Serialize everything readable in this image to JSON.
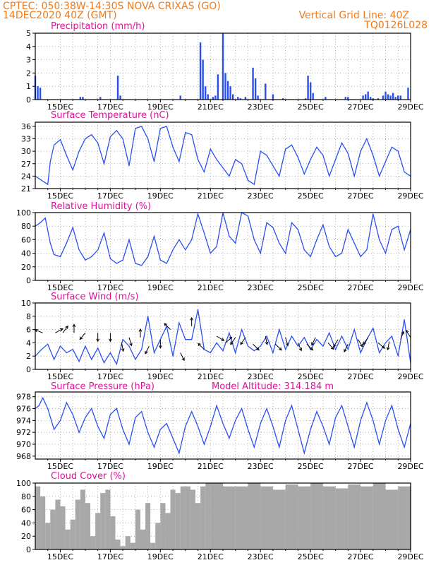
{
  "header": {
    "line1": "CPTEC:   050:38W-14:30S   NOVA CRIXAS (GO)",
    "line2": "14DEC2020 40Z (GMT)",
    "right1": "Vertical Grid Line: 40Z",
    "right2": "TQ0126L028"
  },
  "x_ticks": [
    "15DEC",
    "17DEC",
    "19DEC",
    "21DEC",
    "23DEC",
    "25DEC",
    "27DEC",
    "29DEC"
  ],
  "colors": {
    "series": "#2a4ff0",
    "header": "#f07a1a",
    "title": "#e0119a",
    "cloud": "#a8a8a8",
    "grid": "#9a9a9a"
  },
  "model_altitude": "Model Altitude: 314.184 m",
  "chart_data": [
    {
      "type": "bar",
      "title": "Precipitation (mm/h)",
      "ylim": [
        0,
        5
      ],
      "yticks": [
        "0",
        "1",
        "2",
        "3",
        "4",
        "5"
      ],
      "x": [
        14.0,
        14.1,
        14.2,
        15.8,
        15.9,
        16.6,
        17.3,
        17.4,
        19.8,
        20.6,
        20.7,
        20.8,
        20.9,
        21.1,
        21.2,
        21.3,
        21.5,
        21.6,
        21.7,
        21.8,
        21.9,
        22.1,
        22.2,
        22.4,
        22.7,
        22.8,
        22.9,
        23.2,
        23.5,
        23.9,
        24.8,
        24.9,
        25.0,
        25.1,
        25.6,
        26.4,
        26.5,
        27.1,
        27.2,
        27.3,
        27.4,
        27.5,
        27.7,
        27.9,
        28.0,
        28.1,
        28.2,
        28.3,
        28.4,
        28.5,
        28.6,
        28.9
      ],
      "values": [
        1.8,
        1.0,
        0.9,
        0.2,
        0.2,
        0.2,
        1.8,
        0.3,
        0.3,
        4.3,
        3.0,
        1.0,
        0.4,
        0.2,
        0.3,
        1.9,
        5.0,
        2.0,
        1.4,
        1.0,
        0.4,
        0.2,
        0.1,
        0.2,
        2.4,
        1.6,
        0.3,
        1.2,
        0.4,
        0.1,
        0.1,
        1.8,
        1.3,
        0.5,
        0.2,
        0.2,
        0.2,
        0.3,
        0.4,
        0.6,
        0.2,
        0.1,
        0.1,
        0.3,
        0.6,
        0.4,
        0.3,
        0.5,
        0.2,
        0.3,
        0.3,
        0.9
      ]
    },
    {
      "type": "line",
      "title": "Surface Temperature (nC)",
      "ylim": [
        21,
        37
      ],
      "yticks": [
        "21",
        "24",
        "27",
        "30",
        "33",
        "36"
      ],
      "x": [
        14.0,
        14.25,
        14.5,
        14.6,
        14.75,
        15.0,
        15.25,
        15.5,
        15.75,
        16.0,
        16.25,
        16.5,
        16.75,
        17.0,
        17.25,
        17.5,
        17.75,
        18.0,
        18.25,
        18.5,
        18.75,
        19.0,
        19.25,
        19.5,
        19.75,
        20.0,
        20.25,
        20.5,
        20.75,
        21.0,
        21.25,
        21.5,
        21.75,
        22.0,
        22.25,
        22.5,
        22.75,
        23.0,
        23.25,
        23.5,
        23.75,
        24.0,
        24.25,
        24.5,
        24.75,
        25.0,
        25.25,
        25.5,
        25.75,
        26.0,
        26.25,
        26.5,
        26.75,
        27.0,
        27.25,
        27.5,
        27.75,
        28.0,
        28.25,
        28.5,
        28.75,
        29.0
      ],
      "values": [
        24.0,
        23.0,
        22.0,
        27.5,
        31.5,
        32.8,
        29.0,
        25.5,
        30.0,
        33.0,
        34.0,
        32.0,
        27.0,
        33.5,
        35.0,
        33.0,
        26.5,
        35.5,
        36.0,
        33.0,
        27.5,
        35.5,
        36.0,
        31.0,
        27.5,
        34.5,
        34.0,
        28.0,
        25.0,
        30.5,
        28.0,
        26.0,
        24.0,
        28.0,
        27.0,
        23.0,
        22.0,
        30.0,
        29.0,
        26.5,
        24.0,
        30.5,
        31.5,
        28.5,
        24.5,
        28.0,
        31.0,
        29.0,
        24.0,
        28.0,
        32.0,
        29.5,
        24.0,
        30.0,
        33.0,
        29.0,
        24.0,
        27.5,
        31.0,
        30.0,
        25.0,
        24.0
      ]
    },
    {
      "type": "line",
      "title": "Relative Humidity (%)",
      "ylim": [
        0,
        100
      ],
      "yticks": [
        "0",
        "20",
        "40",
        "60",
        "80",
        "100"
      ],
      "x": [
        14.0,
        14.2,
        14.4,
        14.6,
        14.75,
        15.0,
        15.25,
        15.5,
        15.75,
        16.0,
        16.25,
        16.5,
        16.75,
        17.0,
        17.25,
        17.5,
        17.75,
        18.0,
        18.25,
        18.5,
        18.75,
        19.0,
        19.25,
        19.5,
        19.75,
        20.0,
        20.25,
        20.5,
        20.75,
        21.0,
        21.25,
        21.5,
        21.75,
        22.0,
        22.25,
        22.5,
        22.75,
        23.0,
        23.25,
        23.5,
        23.75,
        24.0,
        24.25,
        24.5,
        24.75,
        25.0,
        25.25,
        25.5,
        25.75,
        26.0,
        26.25,
        26.5,
        26.75,
        27.0,
        27.25,
        27.5,
        27.75,
        28.0,
        28.25,
        28.5,
        28.75,
        29.0
      ],
      "values": [
        80,
        85,
        92,
        55,
        38,
        35,
        55,
        78,
        45,
        30,
        35,
        45,
        70,
        32,
        25,
        30,
        60,
        25,
        22,
        35,
        65,
        30,
        25,
        45,
        60,
        45,
        60,
        98,
        70,
        40,
        50,
        100,
        65,
        55,
        100,
        95,
        60,
        40,
        85,
        78,
        55,
        40,
        85,
        75,
        45,
        35,
        60,
        82,
        50,
        35,
        40,
        75,
        55,
        35,
        45,
        98,
        60,
        40,
        75,
        80,
        45,
        75
      ]
    },
    {
      "type": "line",
      "title": "Surface Wind (m/s)",
      "ylim": [
        0,
        10
      ],
      "yticks": [
        "0",
        "2",
        "4",
        "6",
        "8",
        "10"
      ],
      "x": [
        14.0,
        14.25,
        14.5,
        14.75,
        15.0,
        15.25,
        15.5,
        15.75,
        16.0,
        16.25,
        16.5,
        16.75,
        17.0,
        17.25,
        17.5,
        17.75,
        18.0,
        18.25,
        18.5,
        18.75,
        19.0,
        19.25,
        19.5,
        19.75,
        20.0,
        20.25,
        20.5,
        20.75,
        21.0,
        21.25,
        21.5,
        21.75,
        22.0,
        22.25,
        22.5,
        22.75,
        23.0,
        23.25,
        23.5,
        23.75,
        24.0,
        24.25,
        24.5,
        24.75,
        25.0,
        25.25,
        25.5,
        25.75,
        26.0,
        26.25,
        26.5,
        26.75,
        27.0,
        27.25,
        27.5,
        27.75,
        28.0,
        28.25,
        28.5,
        28.75,
        29.0
      ],
      "values": [
        2.0,
        3.0,
        3.8,
        1.5,
        3.5,
        2.5,
        3.0,
        1.2,
        3.5,
        1.5,
        3.2,
        1.0,
        2.5,
        0.8,
        4.5,
        3.5,
        1.5,
        3.0,
        8.0,
        2.5,
        4.5,
        6.5,
        2.0,
        7.0,
        4.5,
        4.5,
        9.0,
        3.0,
        2.5,
        4.0,
        2.8,
        5.5,
        2.5,
        6.0,
        3.5,
        2.8,
        3.5,
        5.0,
        2.5,
        6.0,
        3.0,
        5.0,
        3.5,
        4.8,
        3.0,
        4.5,
        3.5,
        5.5,
        3.0,
        5.0,
        3.0,
        6.0,
        2.5,
        4.5,
        6.2,
        2.5,
        4.0,
        5.0,
        2.0,
        7.5,
        1.0
      ],
      "arrows": {
        "x": [
          14.3,
          14.8,
          15.1,
          15.55,
          16.0,
          16.5,
          17.0,
          17.45,
          17.75,
          18.2,
          18.55,
          19.0,
          19.4,
          19.8,
          20.25,
          20.75,
          21.25,
          21.6,
          22.0,
          22.4,
          22.7,
          23.2,
          23.6,
          24.0,
          24.5,
          24.85,
          25.2,
          25.7,
          26.1,
          26.5,
          26.9,
          27.3,
          27.7,
          28.15,
          28.6,
          29.0
        ],
        "y": [
          5.5,
          5.5,
          5.5,
          5.5,
          5.5,
          5.5,
          5.5,
          4.0,
          4.8,
          4.8,
          3.5,
          4.5,
          6.0,
          2.5,
          6.5,
          3.0,
          5.0,
          4.0,
          4.8,
          4.8,
          3.8,
          5.0,
          3.8,
          4.8,
          4.0,
          3.8,
          4.8,
          4.0,
          4.5,
          3.8,
          4.5,
          4.8,
          4.0,
          4.2,
          4.5,
          4.8
        ],
        "u": [
          -1,
          0.9,
          0.6,
          0,
          -0.5,
          0,
          0,
          0.2,
          0.3,
          0,
          -0.5,
          0,
          -1,
          0.5,
          0,
          -0.7,
          1,
          0.7,
          -0.7,
          -0.7,
          0.6,
          0.2,
          0.6,
          0.3,
          0.3,
          0.6,
          -0.5,
          0.6,
          -0.6,
          -0.4,
          0.5,
          -0.5,
          0.6,
          -0.2,
          0.3,
          -0.5
        ],
        "v": [
          0.4,
          0.5,
          0.8,
          1,
          -0.6,
          -0.8,
          -0.8,
          -1,
          -1,
          1,
          -1,
          -1,
          1,
          -1,
          1,
          0.7,
          -0.6,
          0.6,
          -1,
          -1,
          -0.6,
          -1,
          -0.6,
          -1,
          -0.7,
          -0.6,
          -1,
          -0.7,
          -1,
          -0.8,
          -0.8,
          -0.7,
          -0.5,
          -1,
          0.8,
          0.8
        ]
      }
    },
    {
      "type": "line",
      "title": "Surface Pressure (hPa)",
      "ylim": [
        967.5,
        978.8
      ],
      "yticks": [
        "968",
        "970",
        "972",
        "974",
        "976",
        "978"
      ],
      "x": [
        14.0,
        14.15,
        14.3,
        14.5,
        14.75,
        15.0,
        15.25,
        15.5,
        15.75,
        16.0,
        16.25,
        16.5,
        16.75,
        17.0,
        17.25,
        17.5,
        17.75,
        18.0,
        18.25,
        18.5,
        18.75,
        19.0,
        19.25,
        19.5,
        19.75,
        20.0,
        20.25,
        20.5,
        20.75,
        21.0,
        21.25,
        21.5,
        21.75,
        22.0,
        22.25,
        22.5,
        22.75,
        23.0,
        23.25,
        23.5,
        23.75,
        24.0,
        24.25,
        24.5,
        24.75,
        25.0,
        25.25,
        25.5,
        25.75,
        26.0,
        26.25,
        26.5,
        26.75,
        27.0,
        27.25,
        27.5,
        27.75,
        28.0,
        28.25,
        28.5,
        28.75,
        29.0
      ],
      "values": [
        976.0,
        976.5,
        977.8,
        976.0,
        972.5,
        974.0,
        977.0,
        975.0,
        972.0,
        974.5,
        976.0,
        973.0,
        971.0,
        975.0,
        976.0,
        972.5,
        970.0,
        974.5,
        975.5,
        972.0,
        969.5,
        972.5,
        973.5,
        971.0,
        968.5,
        973.0,
        975.5,
        973.0,
        970.0,
        973.0,
        976.5,
        973.5,
        971.0,
        974.0,
        976.0,
        972.5,
        969.5,
        973.5,
        976.0,
        973.0,
        969.5,
        974.0,
        976.5,
        972.5,
        968.5,
        972.5,
        975.5,
        973.0,
        970.0,
        974.5,
        976.5,
        973.0,
        969.5,
        974.0,
        977.0,
        974.0,
        970.0,
        974.0,
        976.5,
        972.5,
        969.5,
        973.5
      ]
    },
    {
      "type": "area",
      "title": "Cloud Cover (%)",
      "ylim": [
        0,
        100
      ],
      "yticks": [
        "0",
        "20",
        "40",
        "60",
        "80",
        "100"
      ],
      "x": [
        14.0,
        14.2,
        14.4,
        14.6,
        14.8,
        15.0,
        15.2,
        15.4,
        15.6,
        15.8,
        16.0,
        16.2,
        16.4,
        16.6,
        16.8,
        17.0,
        17.2,
        17.4,
        17.6,
        17.8,
        18.0,
        18.2,
        18.4,
        18.6,
        18.8,
        19.0,
        19.2,
        19.4,
        19.6,
        19.8,
        20.0,
        20.2,
        20.4,
        20.6,
        20.8,
        21.0,
        21.5,
        22.0,
        22.5,
        23.0,
        23.5,
        24.0,
        24.5,
        25.0,
        25.5,
        26.0,
        26.5,
        27.0,
        27.5,
        28.0,
        28.5,
        29.0
      ],
      "values": [
        95,
        80,
        40,
        60,
        75,
        65,
        30,
        45,
        75,
        90,
        70,
        20,
        55,
        85,
        90,
        50,
        15,
        5,
        20,
        10,
        60,
        30,
        70,
        10,
        40,
        70,
        55,
        90,
        85,
        95,
        95,
        90,
        70,
        95,
        100,
        100,
        95,
        95,
        100,
        95,
        90,
        98,
        95,
        100,
        95,
        92,
        98,
        95,
        100,
        90,
        95,
        100
      ]
    }
  ]
}
